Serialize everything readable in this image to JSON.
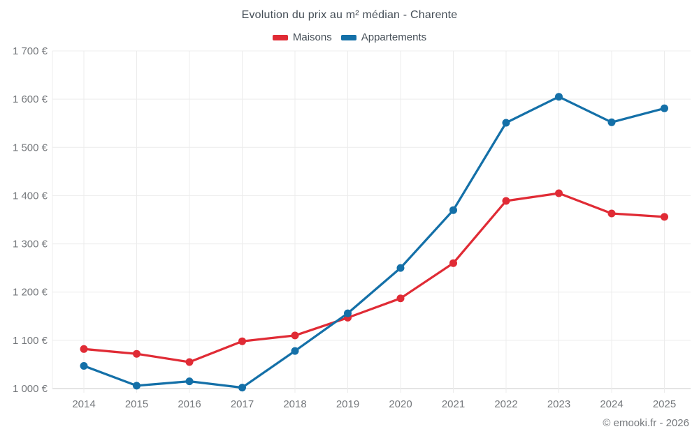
{
  "chart": {
    "title": "Evolution du prix au m² médian - Charente"
  },
  "chart_data": {
    "type": "line",
    "title": "Evolution du prix au m² médian - Charente",
    "x": [
      2014,
      2015,
      2016,
      2017,
      2018,
      2019,
      2020,
      2021,
      2022,
      2023,
      2024,
      2025
    ],
    "x_tick_labels": [
      "2014",
      "2015",
      "2016",
      "2017",
      "2018",
      "2019",
      "2020",
      "2021",
      "2022",
      "2023",
      "2024",
      "2025"
    ],
    "series": [
      {
        "name": "Maisons",
        "color": "#e02b35",
        "values": [
          1082,
          1072,
          1055,
          1098,
          1110,
          1147,
          1187,
          1260,
          1389,
          1405,
          1363,
          1356
        ]
      },
      {
        "name": "Appartements",
        "color": "#1470a8",
        "values": [
          1047,
          1006,
          1015,
          1002,
          1078,
          1156,
          1250,
          1370,
          1551,
          1605,
          1552,
          1581
        ]
      }
    ],
    "ylim": [
      1000,
      1700
    ],
    "y_tick_step": 100,
    "y_tick_labels": [
      "1 000 €",
      "1 100 €",
      "1 200 €",
      "1 300 €",
      "1 400 €",
      "1 500 €",
      "1 600 €",
      "1 700 €"
    ],
    "y_unit": "€",
    "grid": true,
    "legend_position": "top"
  },
  "colors": {
    "grid_line": "#ececec",
    "axis_line": "#c9c9c9",
    "tick_text": "#75787c",
    "title_text": "#454e57",
    "background": "#ffffff"
  },
  "footer": {
    "copyright": "© emooki.fr - 2026"
  }
}
